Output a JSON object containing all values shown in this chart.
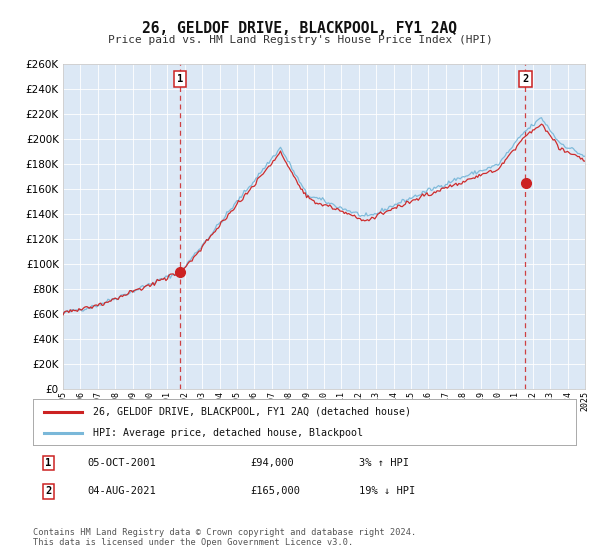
{
  "title": "26, GELDOF DRIVE, BLACKPOOL, FY1 2AQ",
  "subtitle": "Price paid vs. HM Land Registry's House Price Index (HPI)",
  "legend_line1": "26, GELDOF DRIVE, BLACKPOOL, FY1 2AQ (detached house)",
  "legend_line2": "HPI: Average price, detached house, Blackpool",
  "sale1_date": "05-OCT-2001",
  "sale1_price": 94000,
  "sale1_year": 2001.75,
  "sale2_date": "04-AUG-2021",
  "sale2_price": 165000,
  "sale2_year": 2021.58,
  "footer": "Contains HM Land Registry data © Crown copyright and database right 2024.\nThis data is licensed under the Open Government Licence v3.0.",
  "hpi_color": "#7ab8d9",
  "property_color": "#cc2222",
  "plot_bg": "#dce8f5",
  "grid_color": "#ffffff",
  "ymin": 0,
  "ymax": 260000,
  "ytick_values": [
    0,
    20000,
    40000,
    60000,
    80000,
    100000,
    120000,
    140000,
    160000,
    180000,
    200000,
    220000,
    240000,
    260000
  ],
  "xmin": 1995,
  "xmax": 2025,
  "noise_seed": 42
}
